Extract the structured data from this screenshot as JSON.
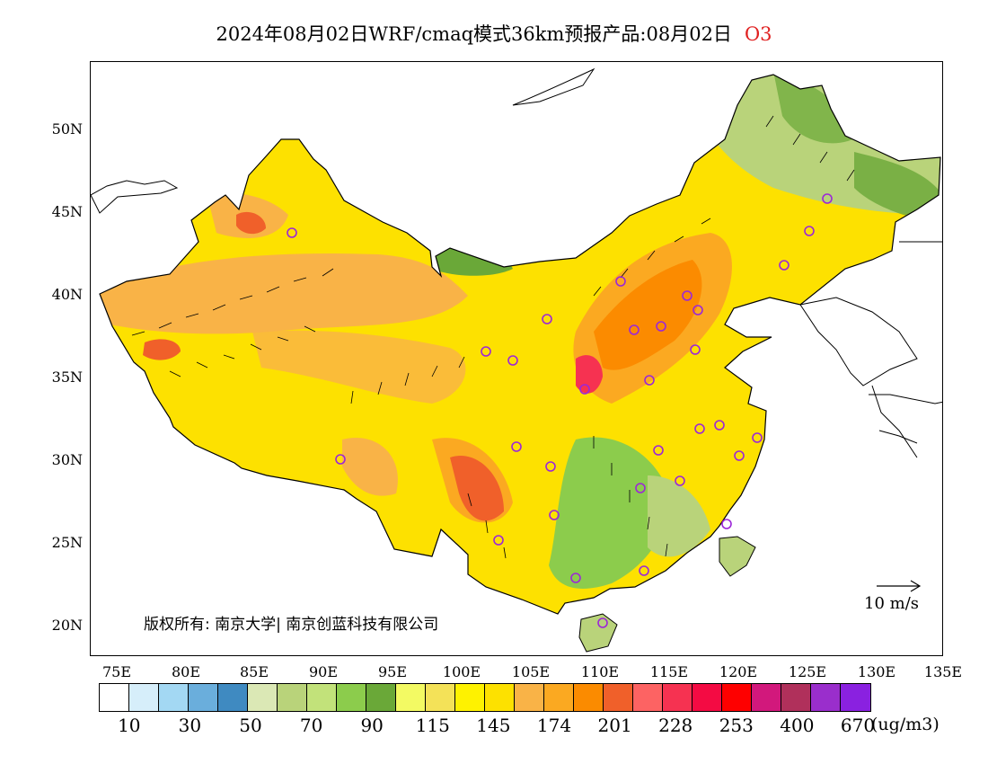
{
  "title": {
    "prefix": "2024年08月02日WRF/cmaq模式36km预报产品:08月02日",
    "species": "O3"
  },
  "colors": {
    "species": "#e02020",
    "station_marker": "#9c27d8",
    "coast": "#000000"
  },
  "latitude_labels": [
    "50N",
    "45N",
    "40N",
    "35N",
    "30N",
    "25N",
    "20N"
  ],
  "longitude_labels": [
    "75E",
    "80E",
    "85E",
    "90E",
    "95E",
    "100E",
    "105E",
    "110E",
    "115E",
    "120E",
    "125E",
    "130E",
    "135E"
  ],
  "copyright": "版权所有: 南京大学| 南京创蓝科技有限公司",
  "wind_scale": {
    "label": "10 m/s",
    "icon": "arrow-right-icon"
  },
  "colorbar": {
    "colors": [
      "#ffffff",
      "#d6eefa",
      "#a3d8f3",
      "#6aaedc",
      "#3f8ac1",
      "#dbe8b5",
      "#b9d37a",
      "#c2e27a",
      "#8ccc4c",
      "#6aa838",
      "#f3fa63",
      "#f4e258",
      "#fef200",
      "#fde100",
      "#f9b347",
      "#fba921",
      "#fb8b00",
      "#f0602a",
      "#fd6363",
      "#f63251",
      "#f40b43",
      "#fe0000",
      "#d2187c",
      "#b0305b",
      "#9a2ecc",
      "#8a21e0"
    ],
    "labels": [
      "10",
      "30",
      "50",
      "70",
      "90",
      "115",
      "145",
      "174",
      "201",
      "228",
      "253",
      "400",
      "670"
    ],
    "unit": "(ug/m3)"
  },
  "map": {
    "variable": "O3",
    "lon_range": [
      73,
      135
    ],
    "lat_range": [
      18,
      54
    ],
    "stations": 36
  }
}
